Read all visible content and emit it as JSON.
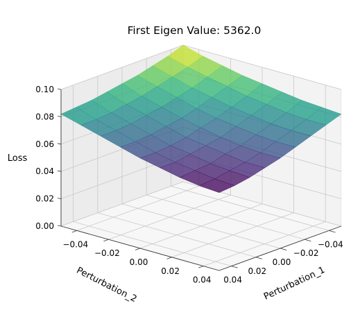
{
  "chart_data": {
    "type": "surface3d",
    "title": "First Eigen Value: 5362.0",
    "xlabel": "Perturbation_1",
    "ylabel": "Perturbation_2",
    "zlabel": "Loss",
    "x_ticks": [
      "−0.04",
      "−0.02",
      "0.00",
      "0.02",
      "0.04"
    ],
    "y_ticks": [
      "−0.04",
      "−0.02",
      "0.00",
      "0.02",
      "0.04"
    ],
    "z_ticks": [
      "0.00",
      "0.02",
      "0.04",
      "0.06",
      "0.08",
      "0.10"
    ],
    "x_values": [
      -0.05,
      -0.0375,
      -0.025,
      -0.0125,
      0.0,
      0.0125,
      0.025,
      0.0375,
      0.05
    ],
    "y_values": [
      -0.05,
      -0.0375,
      -0.025,
      -0.0125,
      0.0,
      0.0125,
      0.025,
      0.0375,
      0.05
    ],
    "xlim": [
      -0.05,
      0.05
    ],
    "ylim": [
      -0.05,
      0.05
    ],
    "zlim": [
      0.0,
      0.1
    ],
    "grid": true,
    "colormap": "viridis",
    "loss_grid": [
      [
        0.1,
        0.096,
        0.093,
        0.09,
        0.088,
        0.086,
        0.084,
        0.083,
        0.082
      ],
      [
        0.096,
        0.092,
        0.089,
        0.086,
        0.083,
        0.081,
        0.079,
        0.078,
        0.078
      ],
      [
        0.093,
        0.089,
        0.085,
        0.082,
        0.079,
        0.077,
        0.075,
        0.074,
        0.074
      ],
      [
        0.09,
        0.086,
        0.082,
        0.078,
        0.075,
        0.073,
        0.071,
        0.07,
        0.07
      ],
      [
        0.088,
        0.083,
        0.079,
        0.075,
        0.072,
        0.069,
        0.067,
        0.066,
        0.066
      ],
      [
        0.086,
        0.081,
        0.077,
        0.073,
        0.069,
        0.067,
        0.065,
        0.063,
        0.063
      ],
      [
        0.084,
        0.079,
        0.075,
        0.071,
        0.067,
        0.065,
        0.062,
        0.061,
        0.06
      ],
      [
        0.083,
        0.078,
        0.074,
        0.07,
        0.066,
        0.063,
        0.061,
        0.059,
        0.058
      ],
      [
        0.082,
        0.078,
        0.074,
        0.07,
        0.066,
        0.063,
        0.06,
        0.058,
        0.057
      ]
    ]
  }
}
